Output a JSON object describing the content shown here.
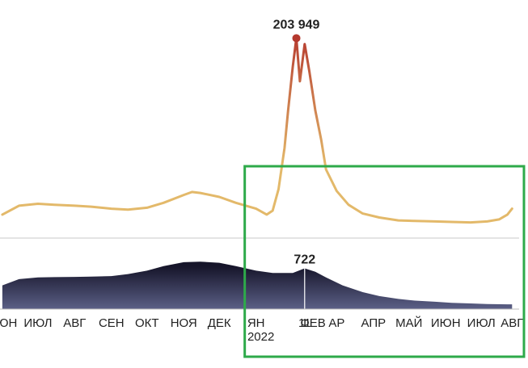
{
  "chart_data": [
    {
      "type": "line",
      "title": "",
      "xlabel": "",
      "ylabel": "",
      "peak_label": "203 949",
      "x": [
        "2021-06-01",
        "2021-06-15",
        "2021-07-01",
        "2021-07-15",
        "2021-08-01",
        "2021-08-15",
        "2021-09-01",
        "2021-09-15",
        "2021-10-01",
        "2021-10-15",
        "2021-11-01",
        "2021-11-08",
        "2021-11-15",
        "2021-12-01",
        "2021-12-15",
        "2022-01-01",
        "2022-01-10",
        "2022-01-15",
        "2022-01-20",
        "2022-01-25",
        "2022-01-28",
        "2022-02-01",
        "2022-02-04",
        "2022-02-07",
        "2022-02-11",
        "2022-02-15",
        "2022-02-20",
        "2022-02-25",
        "2022-03-01",
        "2022-03-10",
        "2022-03-20",
        "2022-04-01",
        "2022-04-15",
        "2022-05-01",
        "2022-05-15",
        "2022-06-01",
        "2022-06-15",
        "2022-07-01",
        "2022-07-15",
        "2022-07-25",
        "2022-08-01",
        "2022-08-05"
      ],
      "values": [
        24000,
        33000,
        35000,
        34000,
        33000,
        32000,
        30000,
        29000,
        31000,
        36000,
        44000,
        47000,
        46000,
        42000,
        36000,
        30000,
        24000,
        28000,
        50000,
        92000,
        130000,
        175000,
        203949,
        160000,
        198000,
        170000,
        130000,
        100000,
        70000,
        48000,
        34000,
        25000,
        21000,
        18000,
        17500,
        17000,
        16500,
        16000,
        17000,
        19000,
        24000,
        30000
      ],
      "peak": {
        "x": "2022-02-04",
        "value": 203949
      },
      "ylim": [
        0,
        210000
      ],
      "color_low": "#e3b96a",
      "color_high": "#b5392e",
      "baseline_color": "#c8c8c8"
    },
    {
      "type": "area",
      "title": "",
      "xlabel": "",
      "ylabel": "",
      "peak_label": "722",
      "x": [
        "2021-06-01",
        "2021-06-15",
        "2021-07-01",
        "2021-07-15",
        "2021-08-01",
        "2021-08-15",
        "2021-09-01",
        "2021-09-15",
        "2021-10-01",
        "2021-10-15",
        "2021-11-01",
        "2021-11-15",
        "2021-12-01",
        "2021-12-15",
        "2022-01-01",
        "2022-01-15",
        "2022-02-01",
        "2022-02-11",
        "2022-02-20",
        "2022-03-01",
        "2022-03-15",
        "2022-04-01",
        "2022-04-15",
        "2022-05-01",
        "2022-05-15",
        "2022-06-01",
        "2022-06-15",
        "2022-07-01",
        "2022-07-15",
        "2022-08-01",
        "2022-08-05"
      ],
      "values": [
        420,
        530,
        560,
        565,
        570,
        575,
        585,
        620,
        680,
        760,
        830,
        840,
        820,
        760,
        680,
        640,
        640,
        722,
        660,
        560,
        420,
        300,
        230,
        180,
        150,
        130,
        110,
        100,
        90,
        85,
        85
      ],
      "marker": {
        "x": "2022-02-11",
        "value": 722
      },
      "ylim": [
        0,
        900
      ],
      "color_low": "#5b5f86",
      "color_high": "#16152a"
    }
  ],
  "x_axis": {
    "ticks": [
      {
        "x": "2021-06-01",
        "label": "ИЮН"
      },
      {
        "x": "2021-07-01",
        "label": "ИЮЛ"
      },
      {
        "x": "2021-08-01",
        "label": "АВГ"
      },
      {
        "x": "2021-09-01",
        "label": "СЕН"
      },
      {
        "x": "2021-10-01",
        "label": "ОКТ"
      },
      {
        "x": "2021-11-01",
        "label": "НОЯ"
      },
      {
        "x": "2021-12-01",
        "label": "ДЕК"
      },
      {
        "x": "2022-01-01",
        "label": "ЯН"
      },
      {
        "x": "2022-02-11",
        "label": "11"
      },
      {
        "x": "2022-02-18",
        "label": "ФЕВ"
      },
      {
        "x": "2022-03-10",
        "label": "АР"
      },
      {
        "x": "2022-04-10",
        "label": "АПР"
      },
      {
        "x": "2022-05-10",
        "label": "МАЙ"
      },
      {
        "x": "2022-06-10",
        "label": "ИЮН"
      },
      {
        "x": "2022-07-10",
        "label": "ИЮЛ"
      },
      {
        "x": "2022-08-05",
        "label": "АВГ"
      }
    ],
    "year_label": {
      "x": "2022-01-01",
      "label": "2022"
    },
    "range": [
      "2021-05-30",
      "2022-08-15"
    ]
  },
  "highlight_box": {
    "x_start": "2022-01-01",
    "x_end": "2022-08-15",
    "color": "#2eaa4a"
  }
}
